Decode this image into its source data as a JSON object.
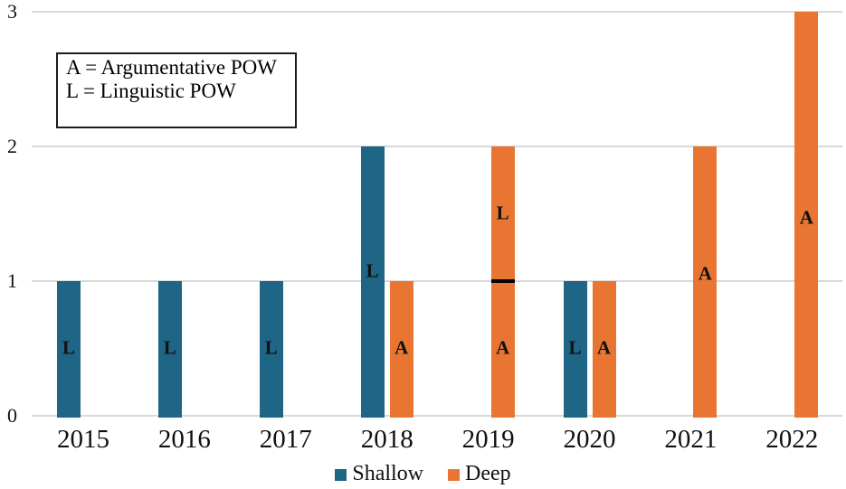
{
  "chart_data": {
    "type": "bar",
    "title": "",
    "categories": [
      "2015",
      "2016",
      "2017",
      "2018",
      "2019",
      "2020",
      "2021",
      "2022"
    ],
    "series": [
      {
        "name": "Shallow",
        "color": "#1f6585"
      },
      {
        "name": "Deep",
        "color": "#e87632"
      }
    ],
    "bars": [
      {
        "category": "2015",
        "series": "Shallow",
        "segments": [
          {
            "value": 1,
            "label": "L",
            "label_y": 0.5
          }
        ]
      },
      {
        "category": "2016",
        "series": "Shallow",
        "segments": [
          {
            "value": 1,
            "label": "L",
            "label_y": 0.5
          }
        ]
      },
      {
        "category": "2017",
        "series": "Shallow",
        "segments": [
          {
            "value": 1,
            "label": "L",
            "label_y": 0.5
          }
        ]
      },
      {
        "category": "2018",
        "series": "Shallow",
        "segments": [
          {
            "value": 2,
            "label": "L",
            "label_y": 1.07
          }
        ]
      },
      {
        "category": "2018",
        "series": "Deep",
        "segments": [
          {
            "value": 1,
            "label": "A",
            "label_y": 0.5
          }
        ]
      },
      {
        "category": "2019",
        "series": "Deep",
        "divider": true,
        "segments": [
          {
            "value": 1,
            "label": "A",
            "label_y": 0.5
          },
          {
            "value": 1,
            "label": "L",
            "label_y": 1.5
          }
        ]
      },
      {
        "category": "2020",
        "series": "Shallow",
        "segments": [
          {
            "value": 1,
            "label": "L",
            "label_y": 0.5
          }
        ]
      },
      {
        "category": "2020",
        "series": "Deep",
        "segments": [
          {
            "value": 1,
            "label": "A",
            "label_y": 0.5
          }
        ]
      },
      {
        "category": "2021",
        "series": "Deep",
        "segments": [
          {
            "value": 2,
            "label": "A",
            "label_y": 1.05
          }
        ]
      },
      {
        "category": "2022",
        "series": "Deep",
        "segments": [
          {
            "value": 3,
            "label": "A",
            "label_y": 1.47
          }
        ]
      }
    ],
    "y_axis": {
      "min": 0,
      "max": 3,
      "ticks": [
        "0",
        "1",
        "2",
        "3"
      ]
    },
    "grid": true,
    "annotation_box": {
      "lines": [
        "A = Argumentative POW",
        "L = Linguistic POW"
      ]
    },
    "legend": {
      "position": "bottom",
      "items": [
        {
          "label": "Shallow",
          "color": "#1f6585"
        },
        {
          "label": "Deep",
          "color": "#e87632"
        }
      ]
    },
    "divider_color": "#000000"
  },
  "colors": {
    "background": "#ffffff",
    "gridline": "#d9d9d9",
    "text": "#111111"
  }
}
